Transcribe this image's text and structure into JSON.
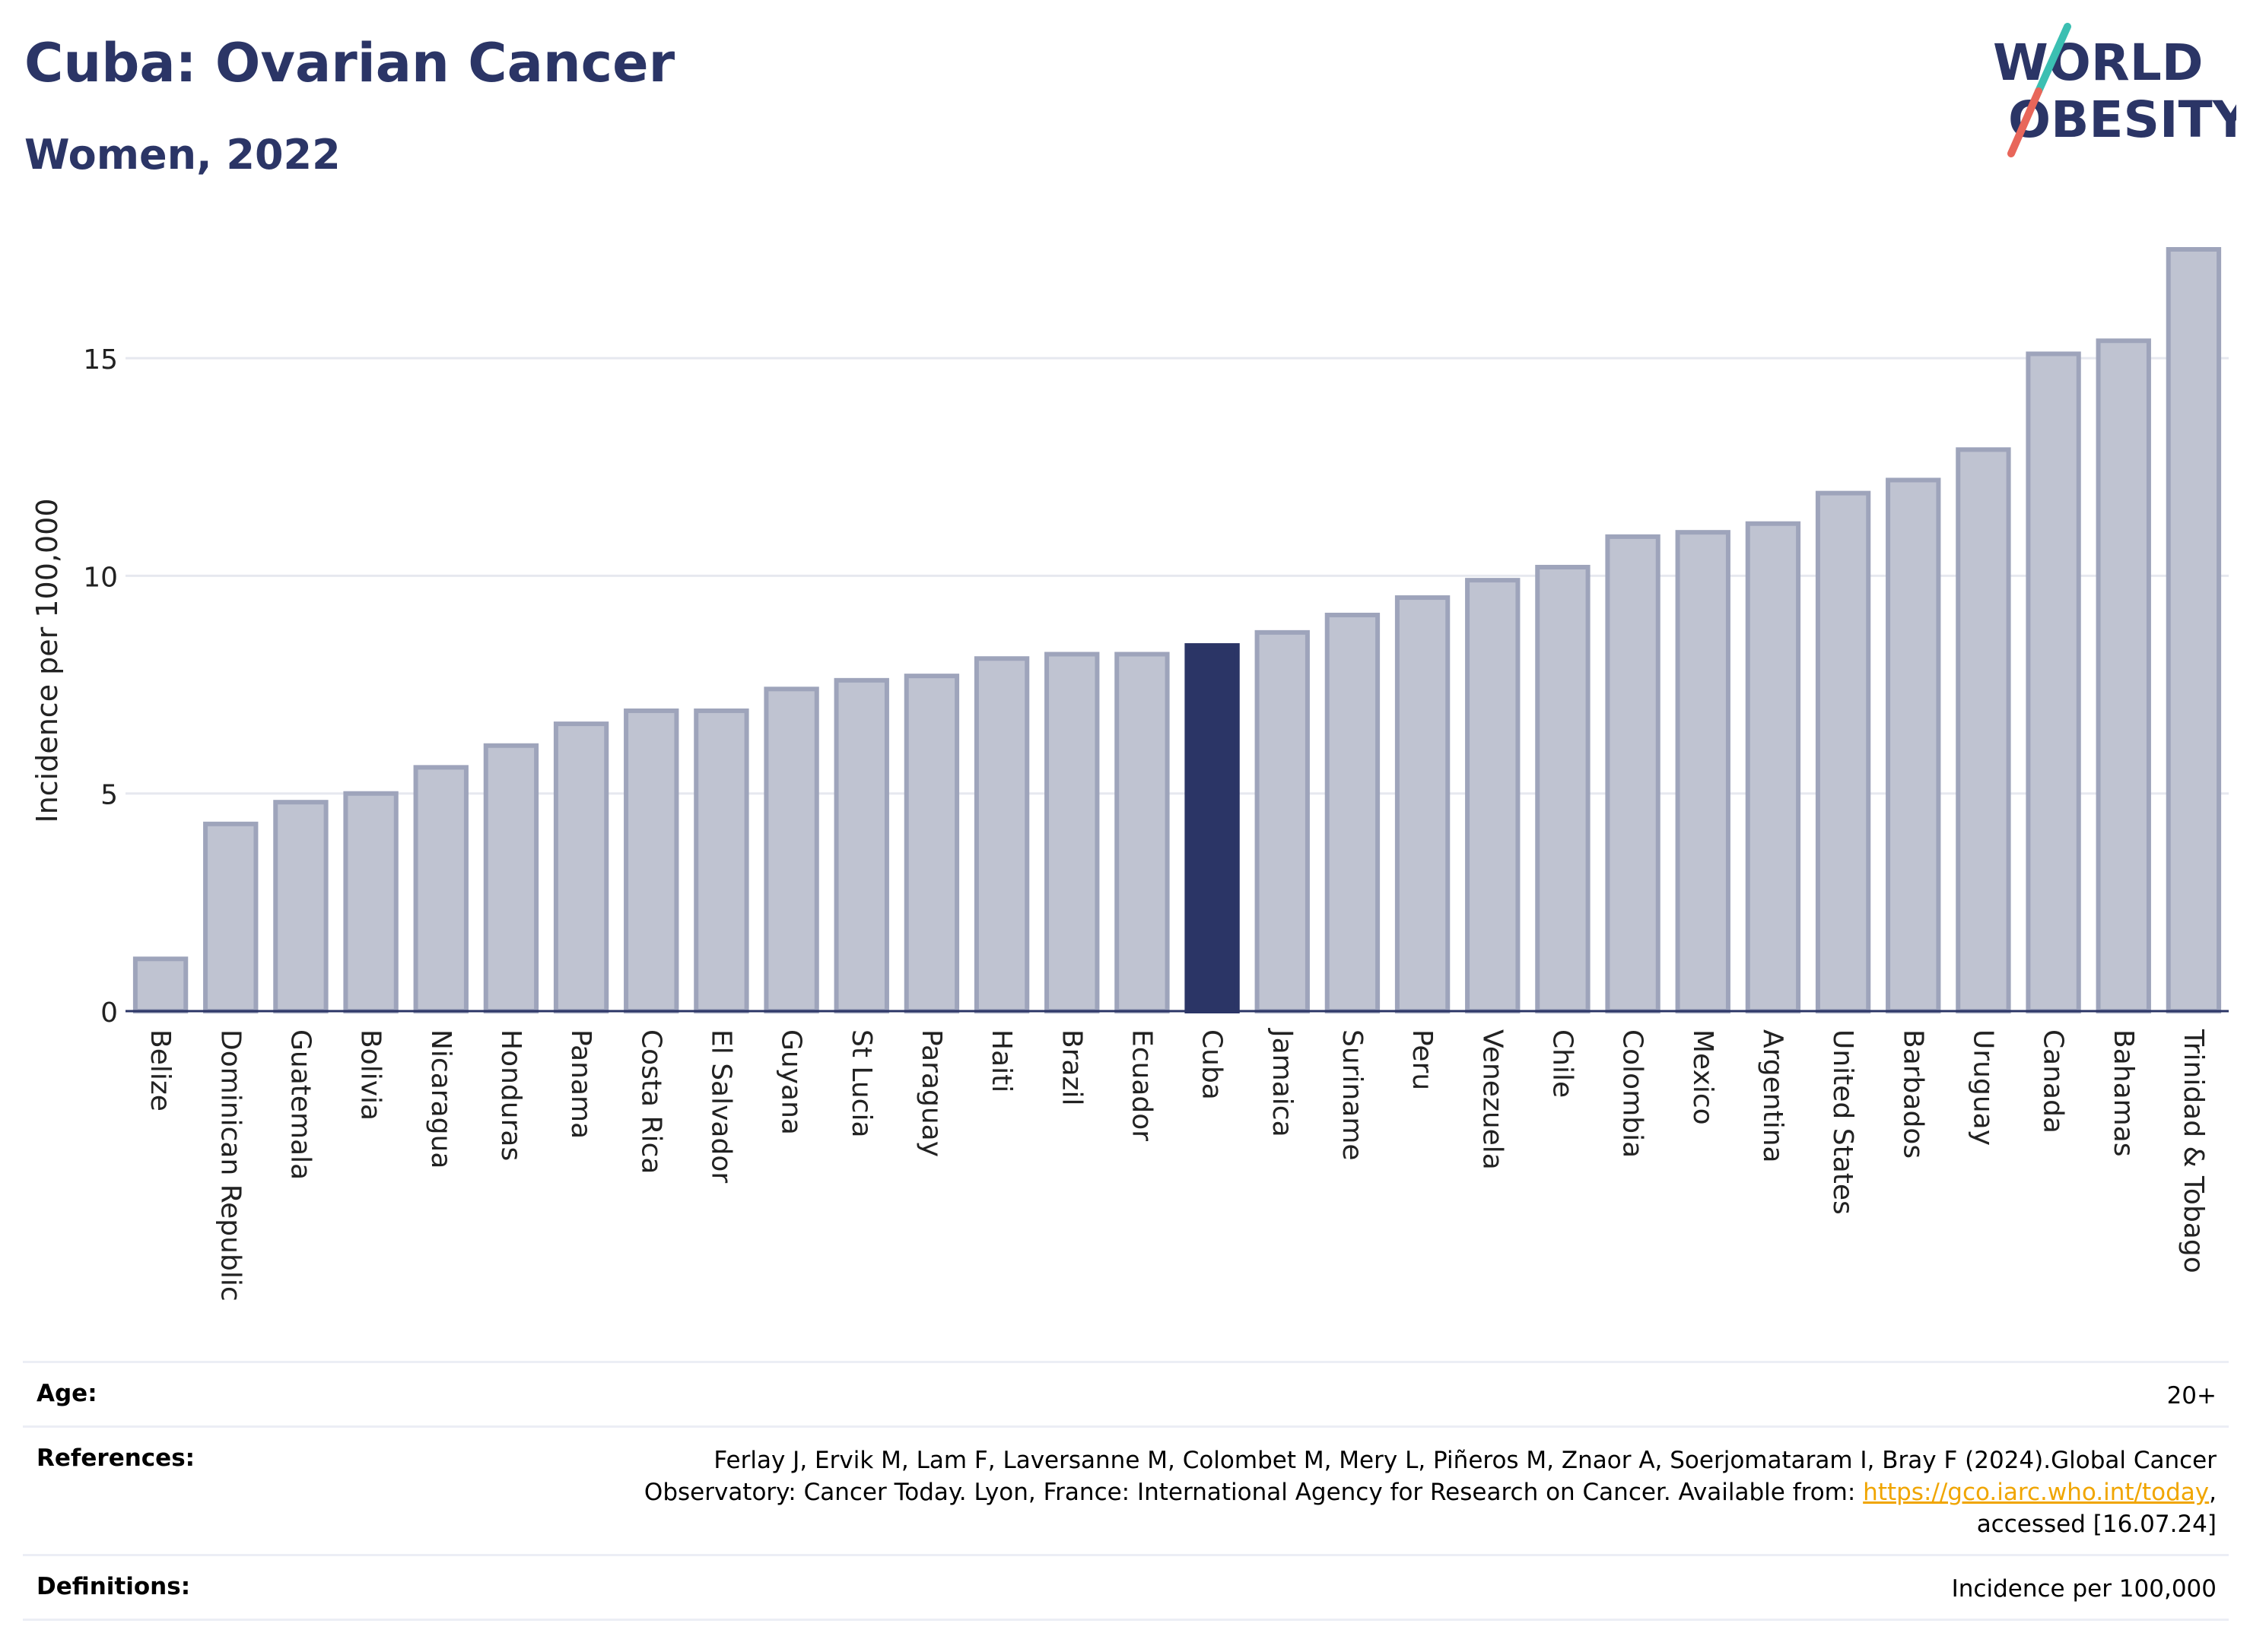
{
  "header": {
    "title": "Cuba: Ovarian Cancer",
    "subtitle": "Women, 2022"
  },
  "logo": {
    "line1": "WORLD",
    "line2": "OBESITY",
    "colors": {
      "text": "#2b3566",
      "slash_top": "#3bbfb2",
      "slash_bottom": "#e8665a"
    }
  },
  "colors": {
    "highlight": "#2b3566",
    "bar_fill": "#bfc3d1",
    "bar_stroke": "#9ea4bb",
    "grid": "#e6e8ef"
  },
  "chart_data": {
    "type": "bar",
    "ylabel": "Incidence per 100,000",
    "ylim": [
      0,
      17.5
    ],
    "yticks": [
      0,
      5,
      10,
      15
    ],
    "grid": true,
    "highlight": "Cuba",
    "categories": [
      "Belize",
      "Dominican Republic",
      "Guatemala",
      "Bolivia",
      "Nicaragua",
      "Honduras",
      "Panama",
      "Costa Rica",
      "El Salvador",
      "Guyana",
      "St Lucia",
      "Paraguay",
      "Haiti",
      "Brazil",
      "Ecuador",
      "Cuba",
      "Jamaica",
      "Suriname",
      "Peru",
      "Venezuela",
      "Chile",
      "Colombia",
      "Mexico",
      "Argentina",
      "United States",
      "Barbados",
      "Uruguay",
      "Canada",
      "Bahamas",
      "Trinidad & Tobago"
    ],
    "values": [
      1.2,
      4.3,
      4.8,
      5.0,
      5.6,
      6.1,
      6.6,
      6.9,
      6.9,
      7.4,
      7.6,
      7.7,
      8.1,
      8.2,
      8.2,
      8.4,
      8.7,
      9.1,
      9.5,
      9.9,
      10.2,
      10.9,
      11.0,
      11.2,
      11.9,
      12.2,
      12.9,
      15.1,
      15.4,
      17.5
    ]
  },
  "footer": {
    "age_label": "Age:",
    "age_value": "20+",
    "references_label": "References:",
    "references_text_1": "Ferlay J, Ervik M, Lam F, Laversanne M, Colombet M, Mery L, Piñeros M, Znaor A, Soerjomataram I, Bray F (2024).Global Cancer Observatory: Cancer Today. Lyon, France: International Agency for Research on Cancer. Available from: ",
    "references_link": "https://gco.iarc.who.int/today",
    "references_text_2": ", accessed [16.07.24]",
    "definitions_label": "Definitions:",
    "definitions_value": "Incidence per 100,000"
  }
}
